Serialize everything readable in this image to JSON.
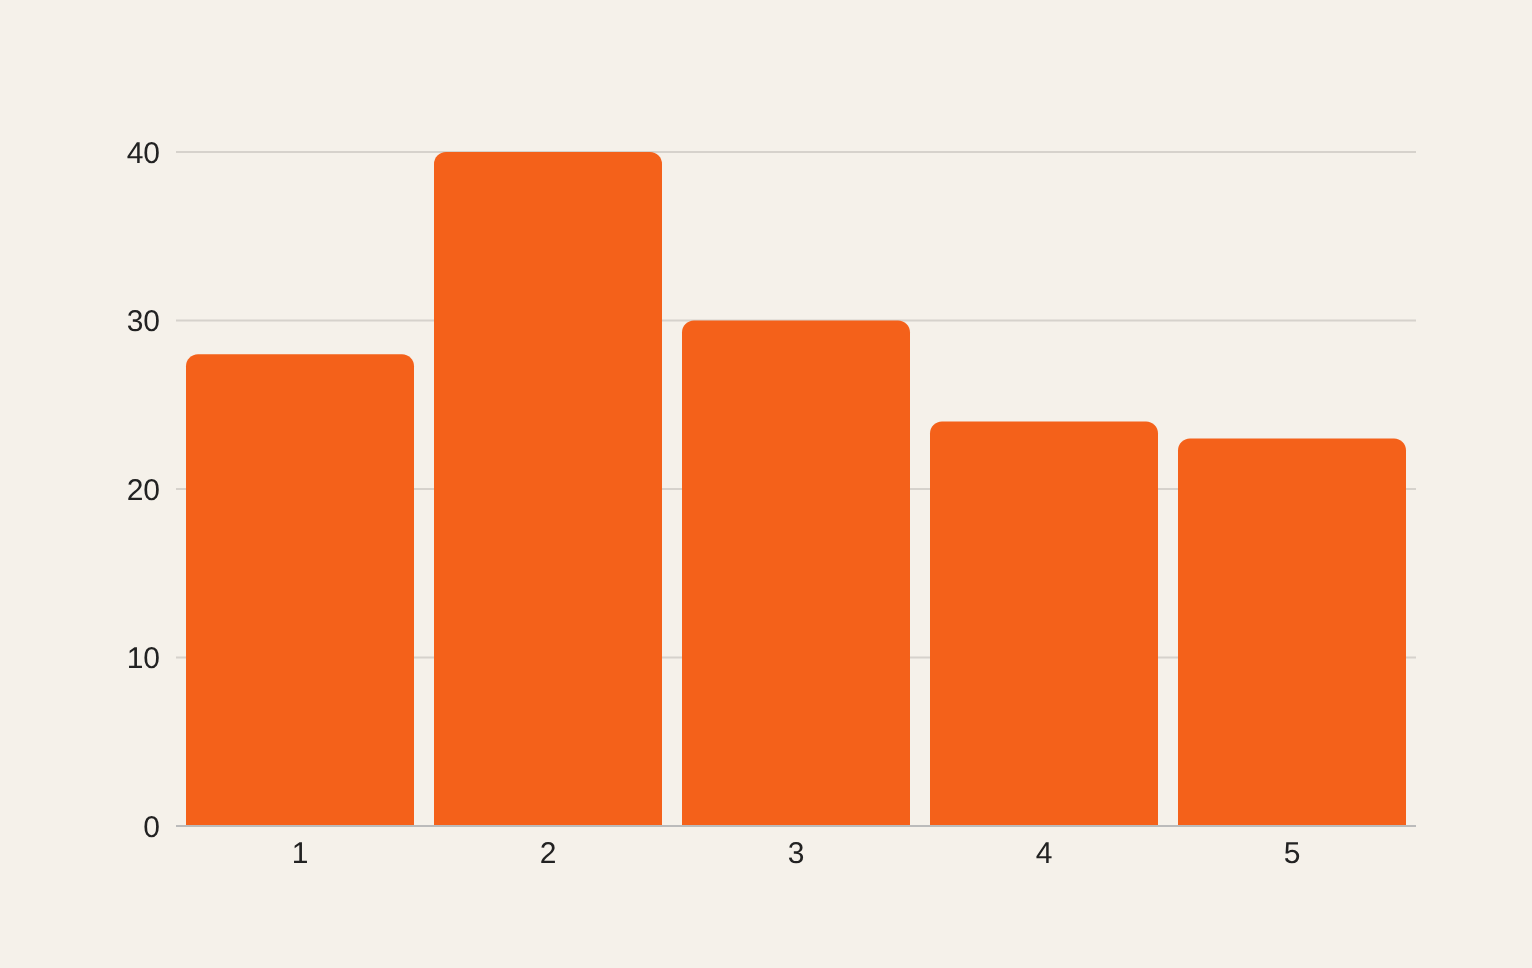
{
  "chart_data": {
    "type": "bar",
    "categories": [
      "1",
      "2",
      "3",
      "4",
      "5"
    ],
    "values": [
      28,
      40,
      30,
      24,
      23
    ],
    "color": "#f4611a",
    "ylim": [
      0,
      40
    ],
    "yticks": [
      0,
      10,
      20,
      30,
      40
    ],
    "grid": "y"
  }
}
